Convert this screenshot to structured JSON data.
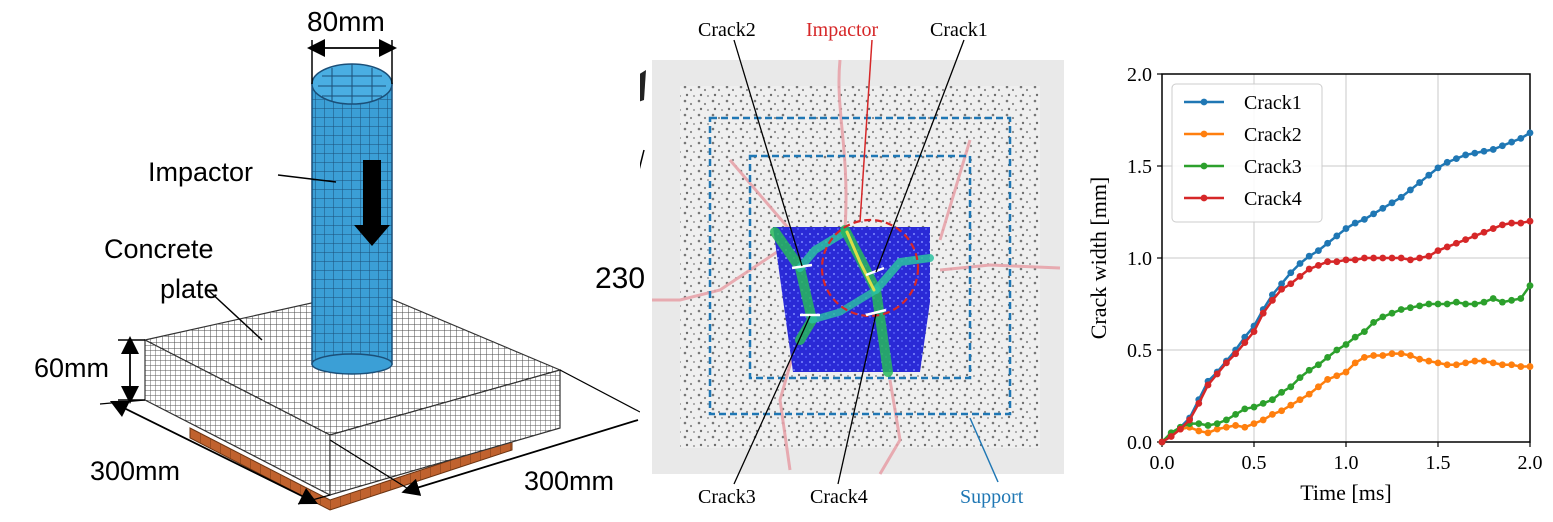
{
  "panel_model": {
    "dim_top": "80mm",
    "impactor_label": "Impactor",
    "plate_label_line1": "Concrete",
    "plate_label_line2": "plate",
    "dim_height": "60mm",
    "dim_left": "300mm",
    "dim_right": "300mm",
    "partial_text": "230",
    "colors": {
      "impactor": "#3b9fd6",
      "mesh": "#5a5a5a",
      "support": "#c0622e"
    }
  },
  "panel_photo": {
    "labels": {
      "crack2": "Crack2",
      "impactor": "Impactor",
      "crack1": "Crack1",
      "crack3": "Crack3",
      "crack4": "Crack4",
      "support": "Support"
    },
    "colors": {
      "impactor": "#d62728",
      "support": "#1f77b4",
      "dic_field": "#2020d0"
    }
  },
  "chart_data": {
    "type": "line",
    "xlabel": "Time [ms]",
    "ylabel": "Crack width [mm]",
    "xlim": [
      0,
      2.0
    ],
    "ylim": [
      0,
      2.0
    ],
    "xticks": [
      "0.0",
      "0.5",
      "1.0",
      "1.5",
      "2.0"
    ],
    "yticks": [
      "0.0",
      "0.5",
      "1.0",
      "1.5",
      "2.0"
    ],
    "grid": true,
    "legend": "top-left",
    "x": [
      0,
      0.05,
      0.1,
      0.15,
      0.2,
      0.25,
      0.3,
      0.35,
      0.4,
      0.45,
      0.5,
      0.55,
      0.6,
      0.65,
      0.7,
      0.75,
      0.8,
      0.85,
      0.9,
      0.95,
      1.0,
      1.05,
      1.1,
      1.15,
      1.2,
      1.25,
      1.3,
      1.35,
      1.4,
      1.45,
      1.5,
      1.55,
      1.6,
      1.65,
      1.7,
      1.75,
      1.8,
      1.85,
      1.9,
      1.95,
      2.0
    ],
    "series": [
      {
        "name": "Crack1",
        "color": "#1f77b4",
        "values": [
          0,
          0.04,
          0.08,
          0.13,
          0.23,
          0.33,
          0.38,
          0.44,
          0.5,
          0.57,
          0.63,
          0.72,
          0.8,
          0.86,
          0.92,
          0.97,
          1.01,
          1.04,
          1.08,
          1.12,
          1.16,
          1.19,
          1.21,
          1.24,
          1.27,
          1.3,
          1.33,
          1.37,
          1.41,
          1.45,
          1.49,
          1.52,
          1.54,
          1.56,
          1.57,
          1.58,
          1.59,
          1.61,
          1.63,
          1.65,
          1.68
        ]
      },
      {
        "name": "Crack2",
        "color": "#ff7f0e",
        "values": [
          0,
          0.04,
          0.07,
          0.08,
          0.06,
          0.05,
          0.07,
          0.08,
          0.09,
          0.08,
          0.1,
          0.12,
          0.15,
          0.17,
          0.2,
          0.23,
          0.26,
          0.3,
          0.34,
          0.36,
          0.38,
          0.43,
          0.46,
          0.47,
          0.47,
          0.48,
          0.48,
          0.47,
          0.45,
          0.44,
          0.43,
          0.42,
          0.42,
          0.43,
          0.44,
          0.44,
          0.43,
          0.42,
          0.42,
          0.41,
          0.41
        ]
      },
      {
        "name": "Crack3",
        "color": "#2ca02c",
        "values": [
          0,
          0.05,
          0.08,
          0.1,
          0.1,
          0.09,
          0.1,
          0.12,
          0.15,
          0.18,
          0.19,
          0.21,
          0.23,
          0.27,
          0.3,
          0.35,
          0.39,
          0.42,
          0.46,
          0.5,
          0.53,
          0.57,
          0.6,
          0.65,
          0.68,
          0.7,
          0.72,
          0.73,
          0.74,
          0.75,
          0.75,
          0.75,
          0.76,
          0.75,
          0.75,
          0.76,
          0.78,
          0.76,
          0.77,
          0.78,
          0.85
        ]
      },
      {
        "name": "Crack4",
        "color": "#d62728",
        "values": [
          0,
          0.03,
          0.07,
          0.12,
          0.21,
          0.31,
          0.37,
          0.43,
          0.48,
          0.54,
          0.6,
          0.7,
          0.77,
          0.83,
          0.86,
          0.9,
          0.94,
          0.96,
          0.98,
          0.98,
          0.99,
          0.99,
          1.0,
          1.0,
          1.0,
          1.0,
          1.0,
          0.99,
          1.0,
          1.01,
          1.04,
          1.06,
          1.08,
          1.1,
          1.12,
          1.14,
          1.16,
          1.18,
          1.19,
          1.19,
          1.2
        ]
      }
    ]
  }
}
